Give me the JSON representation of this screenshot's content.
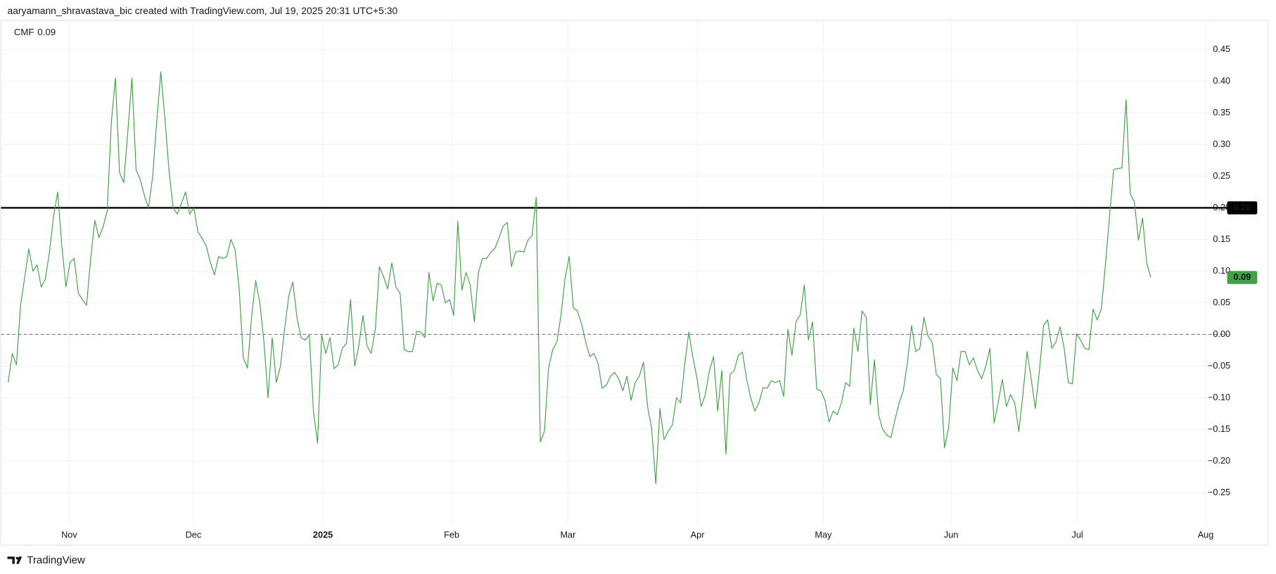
{
  "header": "aaryamann_shravastava_bic created with TradingView.com, Jul 19, 2025 20:31 UTC+5:30",
  "footer": "TradingView",
  "chart_data": {
    "type": "line",
    "series": [
      {
        "name": "CMF",
        "color": "#43a047",
        "values": [
          -0.076,
          -0.03,
          -0.048,
          0.046,
          0.09,
          0.135,
          0.1,
          0.11,
          0.075,
          0.087,
          0.13,
          0.187,
          0.225,
          0.14,
          0.075,
          0.114,
          0.12,
          0.065,
          0.055,
          0.046,
          0.12,
          0.18,
          0.153,
          0.17,
          0.195,
          0.335,
          0.405,
          0.255,
          0.24,
          0.32,
          0.405,
          0.26,
          0.245,
          0.22,
          0.2,
          0.248,
          0.335,
          0.415,
          0.34,
          0.258,
          0.2,
          0.19,
          0.207,
          0.225,
          0.19,
          0.2,
          0.162,
          0.152,
          0.14,
          0.114,
          0.094,
          0.123,
          0.12,
          0.123,
          0.15,
          0.134,
          0.072,
          -0.037,
          -0.053,
          0.027,
          0.085,
          0.05,
          -0.012,
          -0.1,
          -0.005,
          -0.076,
          -0.05,
          0.008,
          0.06,
          0.083,
          0.027,
          -0.005,
          -0.009,
          -0.001,
          -0.121,
          -0.172,
          -0.001,
          -0.03,
          -0.005,
          -0.054,
          -0.048,
          -0.022,
          -0.014,
          0.055,
          -0.05,
          -0.018,
          0.03,
          -0.018,
          -0.03,
          0.008,
          0.107,
          0.091,
          0.072,
          0.113,
          0.075,
          0.065,
          -0.024,
          -0.027,
          -0.027,
          0.005,
          0.004,
          -0.005,
          0.098,
          0.053,
          0.081,
          0.078,
          0.05,
          0.055,
          0.03,
          0.179,
          0.07,
          0.098,
          0.078,
          0.02,
          0.098,
          0.12,
          0.12,
          0.13,
          0.136,
          0.153,
          0.171,
          0.177,
          0.107,
          0.13,
          0.132,
          0.13,
          0.149,
          0.156,
          0.217,
          -0.17,
          -0.153,
          -0.053,
          -0.024,
          -0.012,
          0.03,
          0.089,
          0.123,
          0.042,
          0.037,
          0.017,
          -0.012,
          -0.035,
          -0.03,
          -0.046,
          -0.085,
          -0.08,
          -0.066,
          -0.06,
          -0.07,
          -0.089,
          -0.066,
          -0.104,
          -0.076,
          -0.066,
          -0.044,
          -0.114,
          -0.149,
          -0.236,
          -0.117,
          -0.166,
          -0.153,
          -0.143,
          -0.1,
          -0.108,
          -0.048,
          0.004,
          -0.037,
          -0.07,
          -0.114,
          -0.095,
          -0.057,
          -0.035,
          -0.121,
          -0.057,
          -0.189,
          -0.063,
          -0.057,
          -0.033,
          -0.028,
          -0.07,
          -0.1,
          -0.121,
          -0.108,
          -0.084,
          -0.085,
          -0.073,
          -0.076,
          -0.073,
          -0.098,
          0.008,
          -0.033,
          0.02,
          0.031,
          0.078,
          -0.009,
          0.02,
          -0.086,
          -0.089,
          -0.104,
          -0.138,
          -0.121,
          -0.127,
          -0.108,
          -0.076,
          -0.082,
          0.01,
          -0.027,
          0.037,
          0.027,
          -0.111,
          -0.04,
          -0.127,
          -0.15,
          -0.159,
          -0.163,
          -0.134,
          -0.108,
          -0.089,
          -0.044,
          0.014,
          -0.027,
          -0.022,
          0.027,
          -0.003,
          -0.012,
          -0.063,
          -0.07,
          -0.179,
          -0.147,
          -0.053,
          -0.073,
          -0.027,
          -0.027,
          -0.048,
          -0.037,
          -0.057,
          -0.07,
          -0.05,
          -0.022,
          -0.14,
          -0.108,
          -0.071,
          -0.114,
          -0.095,
          -0.108,
          -0.153,
          -0.095,
          -0.027,
          -0.07,
          -0.117,
          -0.057,
          0.014,
          0.023,
          -0.022,
          -0.012,
          0.012,
          -0.022,
          -0.076,
          -0.078,
          0.001,
          -0.009,
          -0.022,
          -0.024,
          0.04,
          0.023,
          0.04,
          0.11,
          0.188,
          0.261,
          0.262,
          0.263,
          0.371,
          0.222,
          0.21,
          0.149,
          0.184,
          0.113,
          0.09
        ]
      }
    ],
    "xlim": [
      0,
      295.5
    ],
    "xticks": [
      {
        "value": 14.8,
        "label": "Nov"
      },
      {
        "value": 44.9,
        "label": "Dec"
      },
      {
        "value": 76.3,
        "label": "2025"
      },
      {
        "value": 107.5,
        "label": "Feb"
      },
      {
        "value": 135.7,
        "label": "Mar"
      },
      {
        "value": 167.1,
        "label": "Apr"
      },
      {
        "value": 197.6,
        "label": "May"
      },
      {
        "value": 228.6,
        "label": "Jun"
      },
      {
        "value": 259.2,
        "label": "Jul"
      },
      {
        "value": 290.3,
        "label": "Aug"
      }
    ],
    "ylim": [
      -0.3,
      0.5
    ],
    "yticks": [
      0.45,
      {
        "value": 0.4,
        "label": "0.40"
      },
      0.35,
      {
        "value": 0.3,
        "label": "0.30"
      },
      0.25,
      {
        "value": 0.2,
        "label": "0.20"
      },
      0.15,
      {
        "value": 0.1,
        "label": "0.10"
      },
      0.05,
      {
        "value": 0,
        "label": "0.00"
      },
      {
        "value": -0.05,
        "label": "−0.05"
      },
      {
        "value": -0.1,
        "label": "−0.10"
      },
      {
        "value": -0.15,
        "label": "−0.15"
      },
      {
        "value": -0.2,
        "label": "−0.20"
      },
      {
        "value": -0.25,
        "label": "−0.25"
      }
    ],
    "grid": true,
    "hline": {
      "value": 0.2,
      "label": "0.20",
      "color": "#000000"
    },
    "dashed_level": 0
  }
}
